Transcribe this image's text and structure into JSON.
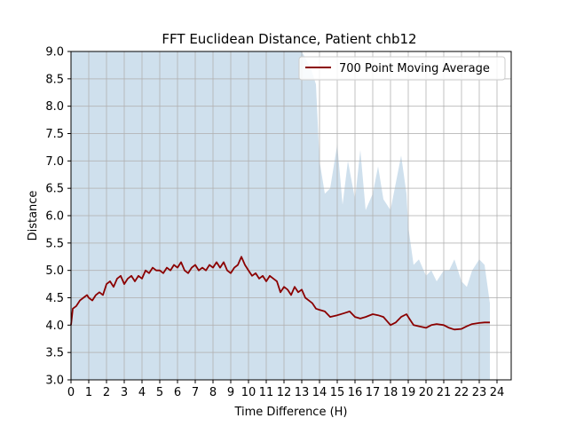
{
  "chart_data": {
    "type": "area",
    "title": "FFT Euclidean Distance, Patient chb12",
    "xlabel": "Time Difference (H)",
    "ylabel": "Distance",
    "xlim": [
      0,
      24.8
    ],
    "ylim": [
      3.0,
      9.0
    ],
    "x_ticks": [
      0,
      1,
      2,
      3,
      4,
      5,
      6,
      7,
      8,
      9,
      10,
      11,
      12,
      13,
      14,
      15,
      16,
      17,
      18,
      19,
      20,
      21,
      22,
      23,
      24
    ],
    "x_tick_labels": [
      "0",
      "1",
      "2",
      "3",
      "4",
      "5",
      "6",
      "7",
      "8",
      "9",
      "10",
      "11",
      "12",
      "13",
      "14",
      "15",
      "16",
      "17",
      "18",
      "19",
      "20",
      "21",
      "22",
      "23",
      "24"
    ],
    "y_ticks": [
      3.0,
      3.5,
      4.0,
      4.5,
      5.0,
      5.5,
      6.0,
      6.5,
      7.0,
      7.5,
      8.0,
      8.5,
      9.0
    ],
    "y_tick_labels": [
      "3.0",
      "3.5",
      "4.0",
      "4.5",
      "5.0",
      "5.5",
      "6.0",
      "6.5",
      "7.0",
      "7.5",
      "8.0",
      "8.5",
      "9.0"
    ],
    "grid": true,
    "legend_position": "top-right",
    "colors": {
      "band": "#cfe0ed",
      "average": "#8b0000",
      "grid": "#b0b0b0"
    },
    "series": [
      {
        "name": "700 Point Moving Average",
        "x": [
          0.0,
          0.1,
          0.3,
          0.5,
          0.7,
          0.9,
          1.0,
          1.2,
          1.4,
          1.6,
          1.8,
          2.0,
          2.2,
          2.4,
          2.6,
          2.8,
          3.0,
          3.2,
          3.4,
          3.6,
          3.8,
          4.0,
          4.2,
          4.4,
          4.6,
          4.8,
          5.0,
          5.2,
          5.4,
          5.6,
          5.8,
          6.0,
          6.2,
          6.4,
          6.6,
          6.8,
          7.0,
          7.2,
          7.4,
          7.6,
          7.8,
          8.0,
          8.2,
          8.4,
          8.6,
          8.8,
          9.0,
          9.2,
          9.4,
          9.6,
          9.8,
          10.0,
          10.2,
          10.4,
          10.6,
          10.8,
          11.0,
          11.2,
          11.4,
          11.6,
          11.8,
          12.0,
          12.2,
          12.4,
          12.6,
          12.8,
          13.0,
          13.2,
          13.4,
          13.6,
          13.8,
          14.0,
          14.3,
          14.6,
          15.0,
          15.4,
          15.7,
          16.0,
          16.3,
          16.6,
          17.0,
          17.3,
          17.6,
          18.0,
          18.3,
          18.6,
          18.9,
          19.1,
          19.3,
          19.6,
          20.0,
          20.3,
          20.6,
          21.0,
          21.3,
          21.6,
          22.0,
          22.3,
          22.6,
          23.0,
          23.3,
          23.6
        ],
        "values": [
          4.0,
          4.3,
          4.35,
          4.45,
          4.5,
          4.55,
          4.5,
          4.45,
          4.55,
          4.6,
          4.55,
          4.75,
          4.8,
          4.7,
          4.85,
          4.9,
          4.75,
          4.85,
          4.9,
          4.8,
          4.9,
          4.85,
          5.0,
          4.95,
          5.05,
          5.0,
          5.0,
          4.95,
          5.05,
          5.0,
          5.1,
          5.05,
          5.15,
          5.0,
          4.95,
          5.05,
          5.1,
          5.0,
          5.05,
          5.0,
          5.1,
          5.05,
          5.15,
          5.05,
          5.15,
          5.0,
          4.95,
          5.05,
          5.1,
          5.25,
          5.1,
          5.0,
          4.9,
          4.95,
          4.85,
          4.9,
          4.8,
          4.9,
          4.85,
          4.8,
          4.6,
          4.7,
          4.65,
          4.55,
          4.7,
          4.6,
          4.65,
          4.5,
          4.45,
          4.4,
          4.3,
          4.28,
          4.25,
          4.15,
          4.18,
          4.22,
          4.25,
          4.15,
          4.12,
          4.15,
          4.2,
          4.18,
          4.15,
          4.0,
          4.05,
          4.15,
          4.2,
          4.1,
          4.0,
          3.98,
          3.95,
          4.0,
          4.02,
          4.0,
          3.95,
          3.92,
          3.93,
          3.98,
          4.02,
          4.04,
          4.05,
          4.05
        ]
      }
    ],
    "band": {
      "x": [
        0.0,
        0.5,
        1.0,
        1.5,
        2.0,
        2.5,
        3.0,
        3.5,
        4.0,
        4.5,
        5.0,
        5.5,
        6.0,
        6.5,
        7.0,
        7.5,
        8.0,
        8.5,
        9.0,
        9.5,
        10.0,
        10.5,
        11.0,
        11.5,
        12.0,
        12.5,
        13.0,
        13.5,
        13.8,
        14.0,
        14.3,
        14.6,
        15.0,
        15.3,
        15.6,
        16.0,
        16.3,
        16.6,
        17.0,
        17.3,
        17.6,
        18.0,
        18.3,
        18.6,
        18.9,
        19.0,
        19.3,
        19.6,
        20.0,
        20.3,
        20.6,
        21.0,
        21.3,
        21.6,
        22.0,
        22.3,
        22.6,
        23.0,
        23.3,
        23.6
      ],
      "upper": [
        9.0,
        9.0,
        9.0,
        9.0,
        9.0,
        9.0,
        9.0,
        9.0,
        9.0,
        9.0,
        9.0,
        9.0,
        9.0,
        9.0,
        9.0,
        9.0,
        9.0,
        9.0,
        9.0,
        9.0,
        9.0,
        9.0,
        9.0,
        9.0,
        9.0,
        9.0,
        9.0,
        8.7,
        8.4,
        7.0,
        6.4,
        6.5,
        7.3,
        6.2,
        7.0,
        6.3,
        7.2,
        6.1,
        6.4,
        6.9,
        6.3,
        6.1,
        6.6,
        7.1,
        6.4,
        5.8,
        5.1,
        5.2,
        4.9,
        5.0,
        4.8,
        5.0,
        5.0,
        5.2,
        4.8,
        4.7,
        5.0,
        5.2,
        5.1,
        4.4
      ],
      "lower": [
        3.0,
        3.0,
        3.0,
        3.0,
        3.0,
        3.0,
        3.0,
        3.0,
        3.0,
        3.0,
        3.0,
        3.0,
        3.0,
        3.0,
        3.0,
        3.0,
        3.0,
        3.0,
        3.0,
        3.0,
        3.0,
        3.0,
        3.0,
        3.0,
        3.0,
        3.0,
        3.0,
        3.0,
        3.0,
        3.0,
        3.0,
        3.0,
        3.0,
        3.0,
        3.0,
        3.0,
        3.0,
        3.0,
        3.0,
        3.0,
        3.0,
        3.0,
        3.0,
        3.0,
        3.0,
        3.0,
        3.0,
        3.0,
        3.0,
        3.0,
        3.0,
        3.0,
        3.0,
        3.0,
        3.0,
        3.0,
        3.0,
        3.0,
        3.0,
        3.0
      ]
    }
  }
}
